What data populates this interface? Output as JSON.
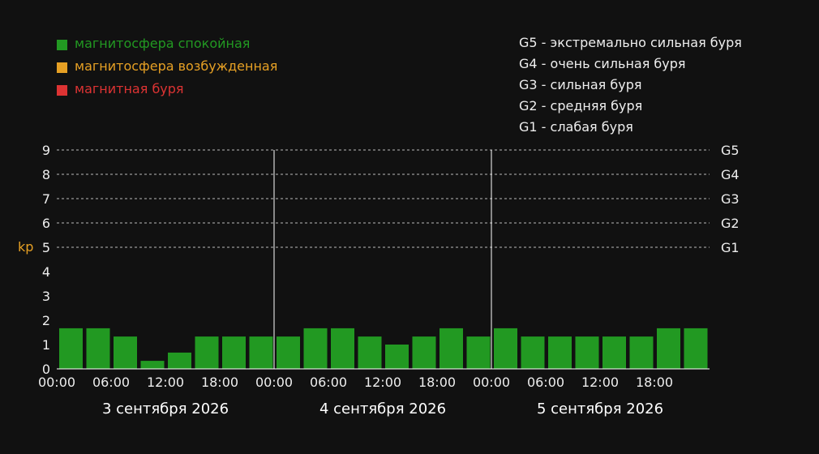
{
  "legend": {
    "items": [
      {
        "label": "магнитосфера спокойная",
        "color": "#229922"
      },
      {
        "label": "магнитосфера возбужденная",
        "color": "#e6a024"
      },
      {
        "label": "магнитная буря",
        "color": "#dd3333"
      }
    ],
    "gscale": [
      {
        "code": "G5",
        "label": "экстремально сильная буря"
      },
      {
        "code": "G4",
        "label": "очень сильная буря"
      },
      {
        "code": "G3",
        "label": "сильная буря"
      },
      {
        "code": "G2",
        "label": "средняя буря"
      },
      {
        "code": "G1",
        "label": "слабая буря"
      }
    ],
    "separator": " - "
  },
  "chart_data": {
    "type": "bar",
    "ylabel": "kp",
    "ylim": [
      0,
      9
    ],
    "yticks": [
      "0",
      "1",
      "2",
      "3",
      "4",
      "5",
      "6",
      "7",
      "8",
      "9"
    ],
    "right_ticks": [
      {
        "value": 9,
        "label": "G5"
      },
      {
        "value": 8,
        "label": "G4"
      },
      {
        "value": 7,
        "label": "G3"
      },
      {
        "value": 6,
        "label": "G2"
      },
      {
        "value": 5,
        "label": "G1"
      }
    ],
    "grid": "dashed at 5-9",
    "bar_color": "#229922",
    "days": [
      {
        "label": "3 сентября 2026",
        "ticks": [
          "00:00",
          "06:00",
          "12:00",
          "18:00"
        ],
        "values": [
          1.67,
          1.67,
          1.33,
          0.33,
          0.67,
          1.33,
          1.33,
          1.33
        ]
      },
      {
        "label": "4 сентября 2026",
        "ticks": [
          "00:00",
          "06:00",
          "12:00",
          "18:00"
        ],
        "values": [
          1.33,
          1.67,
          1.67,
          1.33,
          1.0,
          1.33,
          1.67,
          1.33
        ]
      },
      {
        "label": "5 сентября 2026",
        "ticks": [
          "00:00",
          "06:00",
          "12:00",
          "18:00"
        ],
        "values": [
          1.67,
          1.33,
          1.33,
          1.33,
          1.33,
          1.33,
          1.67,
          1.67
        ]
      }
    ]
  }
}
